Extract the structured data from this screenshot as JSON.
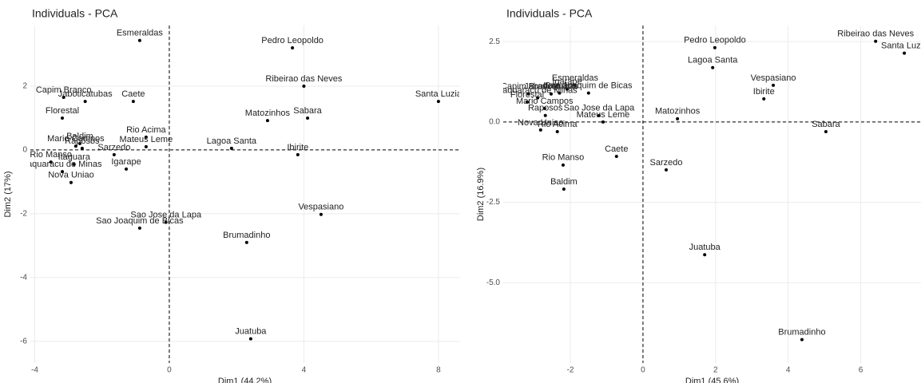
{
  "chart_data": [
    {
      "type": "scatter",
      "title": "Individuals - PCA",
      "x_label": "Dim1 (44.2%)",
      "y_label": "Dim2 (17%)",
      "color": "#000000",
      "grid": true,
      "xlim": [
        -4.13,
        8.62
      ],
      "ylim": [
        -6.68,
        3.9
      ],
      "xticks": [
        -4,
        0,
        4,
        8
      ],
      "yticks": [
        -6,
        -4,
        -2,
        0,
        2
      ],
      "labels": [
        "Esmeraldas",
        "Pedro Leopoldo",
        "Ribeirao das Neves",
        "Santa Luzia",
        "Capim Branco",
        "Jaboticatubas",
        "Caete",
        "Florestal",
        "Matozinhos",
        "Sabara",
        "Baldim",
        "Rio Acima",
        "Mateus Leme",
        "Mario Campos",
        "Raposos",
        "Sarzedo",
        "Lagoa Santa",
        "Ibirite",
        "Rio Manso",
        "Itaguara",
        "Taquaracu de Minas",
        "Igarape",
        "Nova Uniao",
        "Sao Jose da Lapa",
        "Sao Joaquim de Bicas",
        "Vespasiano",
        "Brumadinho",
        "Juatuba"
      ],
      "x": [
        -0.88,
        3.66,
        4.0,
        8.0,
        -3.14,
        -2.5,
        -1.07,
        -3.18,
        2.92,
        4.11,
        -2.66,
        -0.69,
        -0.69,
        -2.78,
        -2.59,
        -1.64,
        1.85,
        3.82,
        -3.52,
        -2.83,
        -3.18,
        -1.28,
        -2.92,
        -0.1,
        -0.88,
        4.51,
        2.3,
        2.42
      ],
      "y": [
        3.43,
        3.2,
        2.0,
        1.52,
        1.65,
        1.52,
        1.52,
        1.0,
        0.92,
        1.0,
        0.2,
        0.4,
        0.1,
        0.12,
        0.05,
        -0.15,
        0.05,
        -0.15,
        -0.38,
        -0.45,
        -0.68,
        -0.6,
        -1.02,
        -2.27,
        -2.45,
        -2.02,
        -2.9,
        -5.92
      ]
    },
    {
      "type": "scatter",
      "title": "Individuals - PCA",
      "x_label": "Dim1 (45.6%)",
      "y_label": "Dim2 (16.9%)",
      "color": "#000000",
      "grid": true,
      "xlim": [
        -3.85,
        7.66
      ],
      "ylim": [
        -7.5,
        3.0
      ],
      "xticks": [
        -2,
        0,
        2,
        4,
        6
      ],
      "yticks": [
        {
          "value": -5,
          "label": "-5.0"
        },
        -2.5,
        {
          "value": 0,
          "label": "0.0"
        },
        2.5
      ],
      "labels": [
        "Ribeirao das Neves",
        "Santa Luzia",
        "Pedro Leopoldo",
        "Lagoa Santa",
        "Vespasiano",
        "Ibirite",
        "Matozinhos",
        "Sabara",
        "Caete",
        "Sarzedo",
        "Rio Manso",
        "Baldim",
        "Juatuba",
        "Brumadinho",
        "Esmeraldas",
        "Sao Joaquim de Bicas",
        "Igarape",
        "Jaboticatubas",
        "Capim Branco",
        "Itaguara",
        "Taquaracu de Minas",
        "Florestal",
        "Mario Campos",
        "Raposos",
        "Sao Jose da Lapa",
        "Mateus Leme",
        "Nova Uniao",
        "Rio Acima"
      ],
      "x": [
        6.41,
        7.2,
        1.98,
        1.92,
        3.59,
        3.33,
        0.95,
        5.04,
        -0.73,
        0.64,
        -2.2,
        -2.18,
        1.7,
        4.38,
        -1.87,
        -1.5,
        -2.09,
        -2.53,
        -3.15,
        -2.3,
        -2.9,
        -3.19,
        -2.71,
        -2.69,
        -1.21,
        -1.1,
        -2.82,
        -2.36
      ],
      "y": [
        2.51,
        2.14,
        2.31,
        1.69,
        1.14,
        0.72,
        0.1,
        -0.3,
        -1.07,
        -1.49,
        -1.34,
        -2.09,
        -4.13,
        -6.77,
        1.14,
        0.9,
        1.02,
        0.87,
        0.87,
        0.9,
        0.75,
        0.62,
        0.42,
        0.2,
        0.2,
        0,
        -0.25,
        -0.3
      ]
    }
  ]
}
